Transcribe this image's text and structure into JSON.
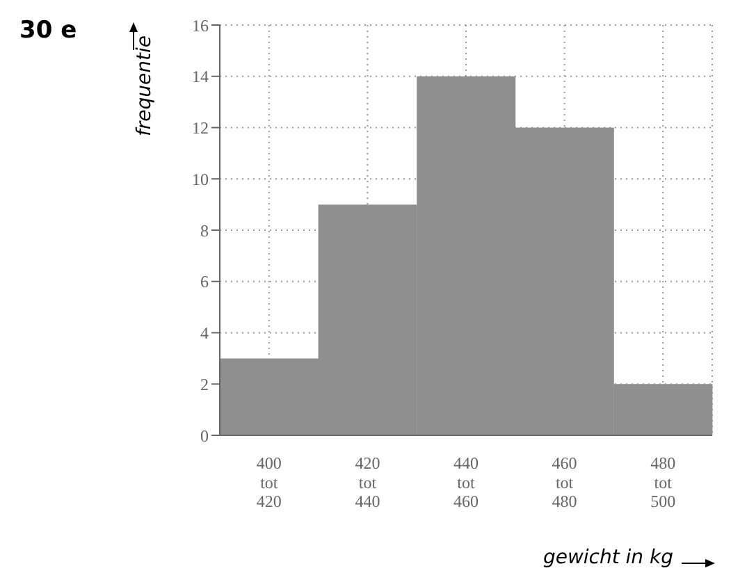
{
  "chart_data": {
    "type": "bar",
    "annotations": [
      "30 e"
    ],
    "xlabel": "gewicht in kg",
    "ylabel": "frequentie",
    "categories": [
      "400 tot 420",
      "420 tot 440",
      "440 tot 460",
      "460 tot 480",
      "480 tot 500"
    ],
    "values": [
      3,
      9,
      14,
      12,
      2
    ],
    "color": "#8f8f8f",
    "ylim": [
      0,
      16
    ],
    "yticks": [
      0,
      2,
      4,
      6,
      8,
      10,
      12,
      14,
      16
    ],
    "grid": true,
    "line_style": "dotted"
  }
}
